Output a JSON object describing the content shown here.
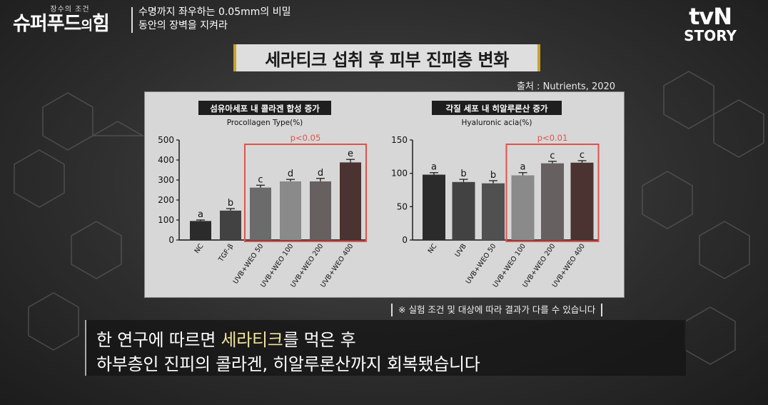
{
  "header": {
    "show_subtitle": "장수의 조건",
    "show_title_part1": "슈퍼푸드",
    "show_title_part2": "의",
    "show_title_part3": "힘",
    "caption_line1": "수명까지 좌우하는 0.05mm의 비밀",
    "caption_line2": "동안의 장벽을 지켜라"
  },
  "channel": {
    "name": "tvN",
    "sub": "STORY"
  },
  "title": "세라티크 섭취 후 피부 진피층 변화",
  "source": "출처 : Nutrients, 2020",
  "note": "※ 실험 조건 및 대상에 따라 결과가 다를 수 있습니다",
  "subtitle": {
    "line1_pre": "한 연구에 따르면 ",
    "line1_highlight": "세라티크",
    "line1_post": "를 먹은 후",
    "line2": "하부층인 진피의 콜라겐, 히알루론산까지 회복됐습니다"
  },
  "colors": {
    "accent_gold": "#c9a227",
    "significance_box": "#e0524d",
    "highlight_text": "#f2e39a"
  },
  "chart_data": [
    {
      "type": "bar",
      "header": "섬유아세포 내 콜라겐 합성 증가",
      "title": "Procollagen Type(%)",
      "categories": [
        "NC",
        "TGF-β",
        "UVB+WEO 50",
        "UVB+WEO 100",
        "UVB+WEO 200",
        "UVB+WEO 400"
      ],
      "values": [
        95,
        147,
        262,
        293,
        293,
        388
      ],
      "errors": [
        5,
        10,
        12,
        10,
        15,
        15
      ],
      "letters": [
        "a",
        "b",
        "c",
        "d",
        "d",
        "e"
      ],
      "bar_colors": [
        "#2b2b2b",
        "#424242",
        "#6b6b6b",
        "#8a8a8a",
        "#676060",
        "#4a3330"
      ],
      "ylim": [
        0,
        500
      ],
      "yticks": [
        0,
        100,
        200,
        300,
        400,
        500
      ],
      "significance": "p<0.05",
      "significance_range": [
        2,
        5
      ]
    },
    {
      "type": "bar",
      "header": "각질 세포 내 히알루론산 증가",
      "title": "Hyaluronic acia(%)",
      "categories": [
        "NC",
        "UVB",
        "UVB+WEO 50",
        "UVB+WEO 100",
        "UVB+WEO 200",
        "UVB+WEO 400"
      ],
      "values": [
        98,
        87,
        85,
        97,
        115,
        116
      ],
      "errors": [
        3,
        4,
        4,
        4,
        3,
        3
      ],
      "letters": [
        "a",
        "b",
        "b",
        "a",
        "c",
        "c"
      ],
      "bar_colors": [
        "#2b2b2b",
        "#424242",
        "#505050",
        "#8a8a8a",
        "#676060",
        "#4a3330"
      ],
      "ylim": [
        0,
        150
      ],
      "yticks": [
        0,
        50,
        100,
        150
      ],
      "significance": "p<0.01",
      "significance_range": [
        3,
        5
      ]
    }
  ]
}
